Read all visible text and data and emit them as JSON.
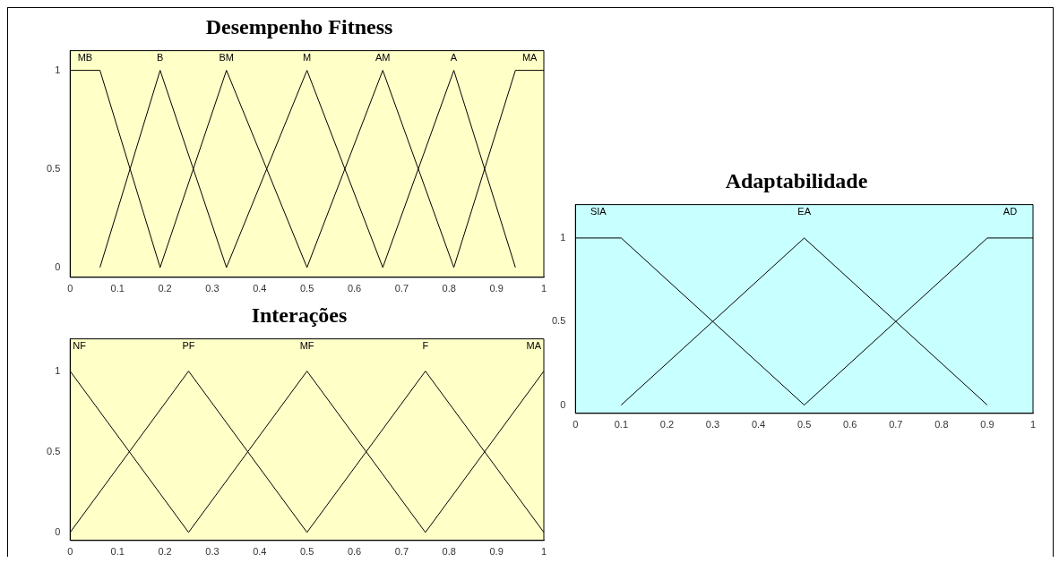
{
  "chart_data": [
    {
      "type": "line",
      "title": "Desempenho Fitness",
      "xlim": [
        0,
        1
      ],
      "ylim": [
        -0.05,
        1.1
      ],
      "xticks": [
        0,
        0.1,
        0.2,
        0.3,
        0.4,
        0.5,
        0.6,
        0.7,
        0.8,
        0.9,
        1
      ],
      "yticks": [
        0,
        0.5,
        1
      ],
      "grid": false,
      "legend": false,
      "series": [
        {
          "name": "MB",
          "color": "#000000",
          "x": [
            0,
            0.063,
            0.19
          ],
          "values": [
            1,
            1,
            0
          ]
        },
        {
          "name": "B",
          "color": "#000000",
          "x": [
            0.063,
            0.19,
            0.33
          ],
          "values": [
            0,
            1,
            0
          ]
        },
        {
          "name": "BM",
          "color": "#000000",
          "x": [
            0.19,
            0.33,
            0.5
          ],
          "values": [
            0,
            1,
            0
          ]
        },
        {
          "name": "M",
          "color": "#000000",
          "x": [
            0.33,
            0.5,
            0.66
          ],
          "values": [
            0,
            1,
            0
          ]
        },
        {
          "name": "AM",
          "color": "#000000",
          "x": [
            0.5,
            0.66,
            0.81
          ],
          "values": [
            0,
            1,
            0
          ]
        },
        {
          "name": "A",
          "color": "#000000",
          "x": [
            0.66,
            0.81,
            0.94
          ],
          "values": [
            0,
            1,
            0
          ]
        },
        {
          "name": "MA",
          "color": "#000000",
          "x": [
            0.81,
            0.94,
            1
          ],
          "values": [
            0,
            1,
            1
          ]
        }
      ]
    },
    {
      "type": "line",
      "title": "Interações",
      "xlim": [
        0,
        1
      ],
      "ylim": [
        -0.05,
        1.2
      ],
      "xticks": [
        0,
        0.1,
        0.2,
        0.3,
        0.4,
        0.5,
        0.6,
        0.7,
        0.8,
        0.9,
        1
      ],
      "yticks": [
        0,
        0.5,
        1
      ],
      "grid": false,
      "legend": false,
      "series": [
        {
          "name": "NF",
          "color": "#000000",
          "x": [
            0,
            0.25
          ],
          "values": [
            1,
            0
          ]
        },
        {
          "name": "PF",
          "color": "#000000",
          "x": [
            0,
            0.25,
            0.5
          ],
          "values": [
            0,
            1,
            0
          ]
        },
        {
          "name": "MF",
          "color": "#000000",
          "x": [
            0.25,
            0.5,
            0.75
          ],
          "values": [
            0,
            1,
            0
          ]
        },
        {
          "name": "F",
          "color": "#000000",
          "x": [
            0.5,
            0.75,
            1
          ],
          "values": [
            0,
            1,
            0
          ]
        },
        {
          "name": "MA",
          "color": "#000000",
          "x": [
            0.75,
            1
          ],
          "values": [
            0,
            1
          ]
        }
      ]
    },
    {
      "type": "line",
      "title": "Adaptabilidade",
      "xlim": [
        0,
        1
      ],
      "ylim": [
        -0.05,
        1.2
      ],
      "xticks": [
        0,
        0.1,
        0.2,
        0.3,
        0.4,
        0.5,
        0.6,
        0.7,
        0.8,
        0.9,
        1
      ],
      "yticks": [
        0,
        0.5,
        1
      ],
      "grid": false,
      "legend": false,
      "series": [
        {
          "name": "SIA",
          "color": "#000000",
          "x": [
            0,
            0.1,
            0.5
          ],
          "values": [
            1,
            1,
            0
          ]
        },
        {
          "name": "EA",
          "color": "#000000",
          "x": [
            0.1,
            0.5,
            0.9
          ],
          "values": [
            0,
            1,
            0
          ]
        },
        {
          "name": "AD",
          "color": "#000000",
          "x": [
            0.5,
            0.9,
            1
          ],
          "values": [
            0,
            1,
            1
          ]
        }
      ]
    }
  ]
}
